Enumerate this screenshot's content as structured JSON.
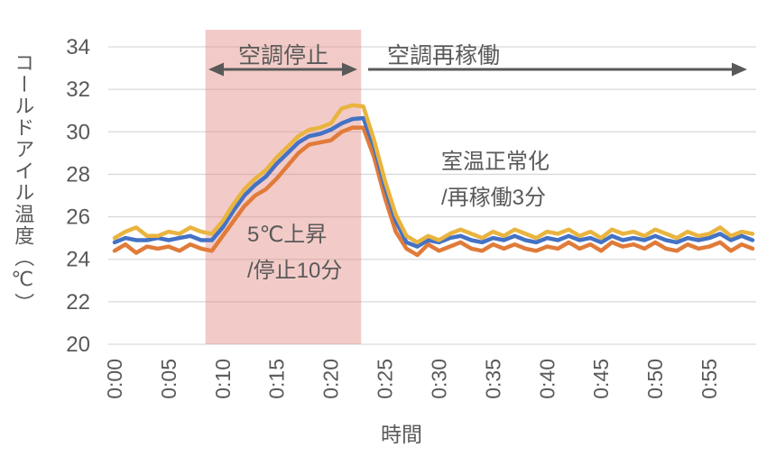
{
  "colors": {
    "grid": "#D9D9D9",
    "text": "#595959",
    "arrow": "#595959"
  },
  "chart_data": {
    "type": "line",
    "title": "",
    "xlabel": "時間",
    "ylabel": "コールドアイル温度（℃）",
    "ylim": [
      20,
      34
    ],
    "ytick_step": 2,
    "ytick_labels": [
      "20",
      "22",
      "24",
      "26",
      "28",
      "30",
      "32",
      "34"
    ],
    "xtick_labels": [
      "0:00",
      "0:05",
      "0:10",
      "0:15",
      "0:20",
      "0:25",
      "0:30",
      "0:35",
      "0:40",
      "0:45",
      "0:50",
      "0:55"
    ],
    "x_start_minute": 0,
    "x_step_minute": 1,
    "grid": "horizontal-only",
    "legend": "none",
    "shaded_region": {
      "from_minute": 8.4,
      "to_minute": 22.8,
      "color_rgba": "rgba(224,132,124,0.42)"
    },
    "series": [
      {
        "id": "series-1",
        "color": "#E07B39",
        "values": [
          24.4,
          24.7,
          24.3,
          24.6,
          24.5,
          24.6,
          24.4,
          24.7,
          24.5,
          24.4,
          25.1,
          25.8,
          26.5,
          27.0,
          27.3,
          27.8,
          28.4,
          29.0,
          29.4,
          29.5,
          29.6,
          30.0,
          30.2,
          30.2,
          28.8,
          26.9,
          25.3,
          24.5,
          24.2,
          24.7,
          24.4,
          24.6,
          24.8,
          24.5,
          24.4,
          24.7,
          24.5,
          24.7,
          24.5,
          24.4,
          24.6,
          24.5,
          24.8,
          24.5,
          24.7,
          24.4,
          24.8,
          24.6,
          24.7,
          24.5,
          24.8,
          24.5,
          24.4,
          24.7,
          24.5,
          24.6,
          24.8,
          24.4,
          24.7,
          24.5
        ]
      },
      {
        "id": "series-2",
        "color": "#4472C4",
        "values": [
          24.8,
          25.0,
          24.9,
          24.9,
          25.0,
          24.9,
          25.0,
          25.1,
          24.9,
          24.9,
          25.5,
          26.3,
          27.0,
          27.5,
          27.9,
          28.5,
          29.0,
          29.5,
          29.8,
          29.9,
          30.1,
          30.4,
          30.6,
          30.65,
          29.3,
          27.4,
          25.8,
          24.8,
          24.6,
          24.9,
          24.8,
          25.0,
          25.1,
          24.9,
          24.8,
          25.0,
          24.9,
          25.1,
          24.9,
          24.8,
          25.0,
          24.9,
          25.1,
          24.9,
          25.0,
          24.8,
          25.1,
          24.9,
          25.0,
          24.9,
          25.1,
          24.9,
          24.8,
          25.0,
          24.9,
          25.0,
          25.2,
          24.9,
          25.1,
          24.9
        ]
      },
      {
        "id": "series-3",
        "color": "#E9B43F",
        "values": [
          25.0,
          25.3,
          25.5,
          25.1,
          25.1,
          25.3,
          25.2,
          25.5,
          25.3,
          25.2,
          25.8,
          26.6,
          27.3,
          27.8,
          28.2,
          28.8,
          29.3,
          29.8,
          30.1,
          30.2,
          30.4,
          31.1,
          31.25,
          31.2,
          29.6,
          27.7,
          26.1,
          25.1,
          24.8,
          25.1,
          24.9,
          25.2,
          25.4,
          25.2,
          25.0,
          25.3,
          25.1,
          25.4,
          25.2,
          25.0,
          25.3,
          25.2,
          25.4,
          25.1,
          25.3,
          25.0,
          25.4,
          25.2,
          25.3,
          25.1,
          25.4,
          25.2,
          25.0,
          25.3,
          25.1,
          25.2,
          25.5,
          25.1,
          25.3,
          25.2
        ]
      }
    ],
    "annotations": {
      "ac_stop": {
        "label": "空調停止"
      },
      "ac_restart": {
        "label": "空調再稼働"
      },
      "rise_note": {
        "line1": "5℃上昇",
        "line2": "/停止10分"
      },
      "normalize_note": {
        "line1": "室温正常化",
        "line2": "/再稼働3分"
      }
    }
  }
}
